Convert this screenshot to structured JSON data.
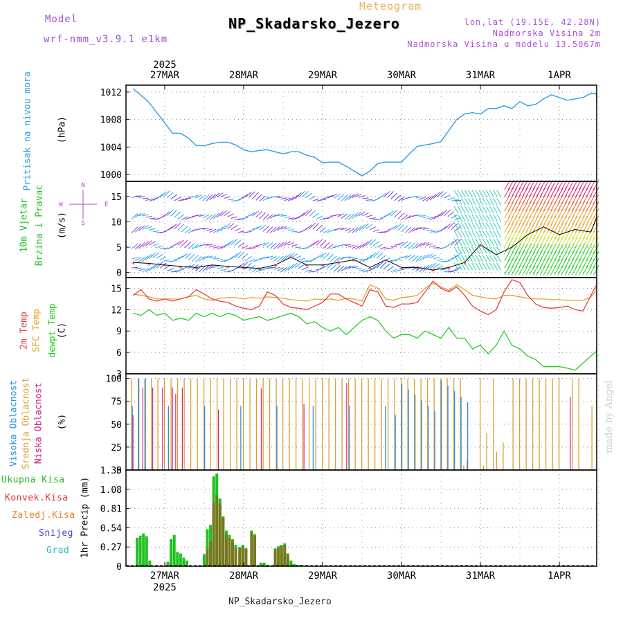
{
  "header": {
    "model_label": "Model",
    "model_name": "wrf-nmm_v3.9.1 e1km",
    "meteogram_label": "Meteogram",
    "station_title": "NP_Skadarsko_Jezero",
    "lonlat": "lon,lat (19.15E, 42.28N)",
    "altitude": "Nadmorska Visina 2m",
    "model_altitude": "Nadmorska Visina u modelu 13.5067m"
  },
  "footer": {
    "station": "NP_Skadarsko_Jezero"
  },
  "watermark": "made by Angel",
  "time_axis": {
    "year": "2025",
    "days": [
      "27MAR",
      "28MAR",
      "29MAR",
      "30MAR",
      "31MAR",
      "1APR"
    ]
  },
  "panels": {
    "pressure": {
      "label": "Pritisak na nivou mora",
      "unit": "(hPa)",
      "color": "#2a9fe0"
    },
    "wind": {
      "label_line1": "10m Vjetar",
      "label_line2": "Brzina i Pravac",
      "unit": "(m/s)",
      "compass": "N ↑, W ←, E →, S ↓",
      "color": "#20c020"
    },
    "temp": {
      "label_2m": "2m Temp",
      "label_sfc": "SFC Temp",
      "label_dew": "dewpt Temp",
      "unit": "(C)",
      "colors": {
        "t2m": "#e84040",
        "sfc": "#e8a030",
        "dew": "#20d020"
      }
    },
    "cloud": {
      "label_high": "Visoka Oblacnost",
      "label_mid": "Srednja Oblacnost",
      "label_low": "Niska Oblacnost",
      "unit": "(%)",
      "colors": {
        "high": "#2a8fe0",
        "mid": "#d8a030",
        "low": "#d02080"
      }
    },
    "precip": {
      "axis_label": "1hr Precip (mm)",
      "legend": [
        {
          "label": "Ukupna Kisa",
          "color": "#20c020"
        },
        {
          "label": "Konvek.Kisa",
          "color": "#e83030"
        },
        {
          "label": "Zaledj.Kisa",
          "color": "#f08020"
        },
        {
          "label": "Snijeg",
          "color": "#4040e0"
        },
        {
          "label": "Grad",
          "color": "#20c0c0"
        }
      ]
    }
  },
  "chart_data": [
    {
      "type": "line",
      "title": "Pritisak na nivou mora",
      "ylabel": "(hPa)",
      "ylim": [
        999,
        1013
      ],
      "yticks": [
        1000,
        1004,
        1008,
        1012
      ],
      "x_unit": "days from 27MAR 00Z",
      "series": [
        {
          "name": "Pritisak na nivou mora",
          "x": [
            -0.4,
            -0.3,
            -0.2,
            -0.1,
            0.0,
            0.1,
            0.2,
            0.3,
            0.4,
            0.5,
            0.6,
            0.7,
            0.8,
            0.9,
            1.0,
            1.1,
            1.2,
            1.3,
            1.4,
            1.5,
            1.6,
            1.7,
            1.8,
            1.9,
            2.0,
            2.1,
            2.2,
            2.3,
            2.4,
            2.5,
            2.6,
            2.7,
            2.8,
            2.9,
            3.0,
            3.1,
            3.2,
            3.3,
            3.4,
            3.5,
            3.6,
            3.7,
            3.8,
            3.9,
            4.0,
            4.1,
            4.2,
            4.3,
            4.4,
            4.5,
            4.6,
            4.7,
            4.8,
            4.9,
            5.0,
            5.1,
            5.2,
            5.3,
            5.4,
            5.5,
            5.6
          ],
          "values": [
            1012.5,
            1011.5,
            1010.5,
            1009.0,
            1007.5,
            1006.0,
            1006.0,
            1005.3,
            1004.2,
            1004.2,
            1004.5,
            1004.7,
            1004.7,
            1004.3,
            1003.6,
            1003.3,
            1003.5,
            1003.6,
            1003.3,
            1003.0,
            1003.3,
            1003.3,
            1002.8,
            1002.5,
            1001.7,
            1001.8,
            1001.8,
            1001.2,
            1000.5,
            999.8,
            1000.5,
            1001.6,
            1001.8,
            1001.8,
            1001.8,
            1003.0,
            1004.1,
            1004.3,
            1004.5,
            1004.8,
            1006.4,
            1008.0,
            1008.8,
            1009.0,
            1008.8,
            1009.6,
            1009.6,
            1010.0,
            1009.6,
            1010.6,
            1010.0,
            1010.2,
            1011.0,
            1011.6,
            1011.2,
            1010.8,
            1011.0,
            1011.2,
            1011.8,
            1011.7,
            1010.6
          ]
        }
      ]
    },
    {
      "type": "line",
      "title": "10m Vjetar Brzina i Pravac",
      "ylabel": "(m/s)",
      "ylim": [
        -1,
        18
      ],
      "yticks": [
        0,
        5,
        10,
        15
      ],
      "x_unit": "days from 27MAR 00Z",
      "series": [
        {
          "name": "wind speed",
          "x": [
            -0.4,
            -0.2,
            0.0,
            0.2,
            0.4,
            0.6,
            0.8,
            1.0,
            1.2,
            1.4,
            1.6,
            1.8,
            2.0,
            2.2,
            2.4,
            2.6,
            2.8,
            3.0,
            3.2,
            3.4,
            3.6,
            3.8,
            4.0,
            4.2,
            4.4,
            4.6,
            4.8,
            5.0,
            5.2,
            5.4,
            5.6
          ],
          "values": [
            2.0,
            1.8,
            1.5,
            1.2,
            1.0,
            1.5,
            1.2,
            1.0,
            0.8,
            1.5,
            3.0,
            1.5,
            1.5,
            2.0,
            2.5,
            1.0,
            2.5,
            1.0,
            1.0,
            0.5,
            1.0,
            2.0,
            5.5,
            3.5,
            5.0,
            7.5,
            9.0,
            7.5,
            8.5,
            8.0,
            11.0
          ]
        }
      ]
    },
    {
      "type": "line",
      "title": "2m Temp / SFC Temp / dewpt Temp",
      "ylabel": "(C)",
      "ylim": [
        3,
        16.5
      ],
      "yticks": [
        3,
        6,
        9,
        12,
        15
      ],
      "x_unit": "days from 27MAR 00Z",
      "series": [
        {
          "name": "2m Temp",
          "x": [
            -0.4,
            -0.3,
            -0.2,
            -0.1,
            0.0,
            0.1,
            0.2,
            0.3,
            0.4,
            0.5,
            0.6,
            0.7,
            0.8,
            0.9,
            1.0,
            1.1,
            1.2,
            1.3,
            1.4,
            1.5,
            1.6,
            1.7,
            1.8,
            1.9,
            2.0,
            2.1,
            2.2,
            2.3,
            2.4,
            2.5,
            2.6,
            2.7,
            2.8,
            2.9,
            3.0,
            3.1,
            3.2,
            3.3,
            3.4,
            3.5,
            3.6,
            3.7,
            3.8,
            3.9,
            4.0,
            4.1,
            4.2,
            4.3,
            4.4,
            4.5,
            4.6,
            4.7,
            4.8,
            4.9,
            5.0,
            5.1,
            5.2,
            5.3,
            5.4,
            5.5,
            5.6
          ],
          "values": [
            14.0,
            14.8,
            13.5,
            13.2,
            13.5,
            13.2,
            13.5,
            13.8,
            14.8,
            14.2,
            13.5,
            13.2,
            13.0,
            12.5,
            12.2,
            12.0,
            12.5,
            14.5,
            14.0,
            12.8,
            12.3,
            12.2,
            12.0,
            12.5,
            13.0,
            14.2,
            14.2,
            13.5,
            13.0,
            12.5,
            14.8,
            14.5,
            12.5,
            12.3,
            12.8,
            12.8,
            13.0,
            14.5,
            16.0,
            15.0,
            14.5,
            15.2,
            14.0,
            12.5,
            11.8,
            11.3,
            12.0,
            14.5,
            16.2,
            15.8,
            14.0,
            12.8,
            12.3,
            12.2,
            12.3,
            12.5,
            12.0,
            11.8,
            14.0,
            15.5,
            16.5
          ]
        },
        {
          "name": "SFC Temp",
          "x": [
            -0.4,
            -0.3,
            -0.2,
            -0.1,
            0.0,
            0.1,
            0.2,
            0.3,
            0.4,
            0.5,
            0.6,
            0.7,
            0.8,
            0.9,
            1.0,
            1.1,
            1.2,
            1.3,
            1.4,
            1.5,
            1.6,
            1.7,
            1.8,
            1.9,
            2.0,
            2.1,
            2.2,
            2.3,
            2.4,
            2.5,
            2.6,
            2.7,
            2.8,
            2.9,
            3.0,
            3.1,
            3.2,
            3.3,
            3.4,
            3.5,
            3.6,
            3.7,
            3.8,
            3.9,
            4.0,
            4.1,
            4.2,
            4.3,
            4.4,
            4.5,
            4.6,
            4.7,
            4.8,
            4.9,
            5.0,
            5.1,
            5.2,
            5.3,
            5.4,
            5.5,
            5.6
          ],
          "values": [
            14.2,
            14.0,
            13.8,
            13.5,
            13.5,
            13.5,
            13.5,
            13.8,
            14.0,
            13.5,
            13.3,
            13.6,
            13.7,
            13.7,
            13.5,
            13.7,
            13.6,
            13.8,
            13.7,
            13.6,
            13.4,
            13.3,
            13.2,
            13.5,
            13.4,
            13.5,
            13.3,
            13.6,
            13.5,
            13.2,
            15.5,
            15.0,
            13.5,
            13.3,
            13.7,
            13.8,
            14.0,
            15.0,
            15.7,
            15.2,
            14.7,
            15.5,
            14.8,
            14.0,
            13.8,
            13.6,
            13.5,
            14.0,
            14.0,
            13.8,
            13.6,
            13.5,
            13.5,
            13.4,
            13.4,
            13.3,
            13.3,
            13.3,
            13.8,
            14.8,
            15.2
          ]
        },
        {
          "name": "dewpt Temp",
          "x": [
            -0.4,
            -0.3,
            -0.2,
            -0.1,
            0.0,
            0.1,
            0.2,
            0.3,
            0.4,
            0.5,
            0.6,
            0.7,
            0.8,
            0.9,
            1.0,
            1.1,
            1.2,
            1.3,
            1.4,
            1.5,
            1.6,
            1.7,
            1.8,
            1.9,
            2.0,
            2.1,
            2.2,
            2.3,
            2.4,
            2.5,
            2.6,
            2.7,
            2.8,
            2.9,
            3.0,
            3.1,
            3.2,
            3.3,
            3.4,
            3.5,
            3.6,
            3.7,
            3.8,
            3.9,
            4.0,
            4.1,
            4.2,
            4.3,
            4.4,
            4.5,
            4.6,
            4.7,
            4.8,
            4.9,
            5.0,
            5.1,
            5.2,
            5.3,
            5.4,
            5.5,
            5.6
          ],
          "values": [
            11.5,
            11.2,
            12.0,
            11.2,
            11.5,
            10.5,
            10.8,
            10.5,
            11.5,
            11.0,
            11.5,
            11.0,
            11.5,
            11.2,
            10.5,
            10.8,
            11.0,
            10.5,
            10.8,
            11.2,
            11.5,
            11.0,
            10.0,
            10.3,
            9.5,
            9.0,
            9.5,
            8.5,
            9.5,
            10.5,
            11.0,
            10.5,
            9.0,
            8.0,
            8.5,
            8.5,
            8.0,
            9.0,
            8.5,
            8.0,
            9.5,
            8.0,
            8.0,
            6.5,
            7.0,
            5.8,
            7.0,
            9.0,
            7.0,
            6.5,
            5.5,
            5.0,
            4.0,
            4.0,
            4.0,
            3.8,
            3.5,
            4.5,
            5.5,
            6.2,
            6.8
          ]
        }
      ]
    },
    {
      "type": "bar",
      "title": "Visoka / Srednja / Niska Oblacnost",
      "ylabel": "(%)",
      "ylim": [
        0,
        105
      ],
      "yticks": [
        0,
        25,
        50,
        75,
        100
      ],
      "x_unit": "days from 27MAR 00Z, hourly",
      "series": [
        {
          "name": "Srednja Oblacnost",
          "pattern": "mostly 100% from -0.4 to 4.9 with low values on 31MAR",
          "peak": 100
        },
        {
          "name": "Visoka Oblacnost",
          "pattern": "sporadic 60-100% spikes, dense on 30MAR",
          "peak": 100
        },
        {
          "name": "Niska Oblacnost",
          "pattern": "sporadic spikes on 27MAR-28MAR and 1APR",
          "peak": 100
        }
      ]
    },
    {
      "type": "bar",
      "title": "1hr Precip",
      "ylabel": "1hr Precip (mm)",
      "ylim": [
        0,
        1.35
      ],
      "yticks": [
        0,
        0.27,
        0.54,
        0.81,
        1.08,
        1.35
      ],
      "x_unit": "days from 27MAR 00Z, hourly",
      "series": [
        {
          "name": "Ukupna Kisa",
          "x": [
            -0.35,
            -0.31,
            -0.27,
            -0.23,
            -0.19,
            0.04,
            0.08,
            0.12,
            0.16,
            0.2,
            0.24,
            0.28,
            0.5,
            0.54,
            0.58,
            0.62,
            0.66,
            0.7,
            0.74,
            0.78,
            0.82,
            0.86,
            0.9,
            0.95,
            0.99,
            1.03,
            1.1,
            1.14,
            1.22,
            1.26,
            1.3,
            1.4,
            1.44,
            1.48,
            1.52,
            1.56,
            1.6,
            1.64,
            1.68,
            1.72,
            1.76,
            1.82,
            1.86
          ],
          "values": [
            0.4,
            0.43,
            0.46,
            0.42,
            0.08,
            0.06,
            0.38,
            0.44,
            0.2,
            0.18,
            0.12,
            0.08,
            0.17,
            0.52,
            0.58,
            1.26,
            1.3,
            0.95,
            0.7,
            0.5,
            0.44,
            0.38,
            0.3,
            0.27,
            0.3,
            0.25,
            0.5,
            0.45,
            0.05,
            0.05,
            0.02,
            0.25,
            0.28,
            0.3,
            0.32,
            0.18,
            0.08,
            0.03,
            0.02,
            0.02,
            0.01,
            0.01,
            0.01
          ]
        },
        {
          "name": "Konvek.Kisa",
          "x": [
            0.54,
            0.58,
            0.62,
            0.66,
            0.7,
            0.74,
            0.78,
            0.82,
            0.86,
            0.9,
            0.95,
            0.99,
            1.03,
            1.1,
            1.14,
            1.4,
            1.44,
            1.48,
            1.52,
            1.56
          ],
          "values": [
            0.25,
            0.35,
            0.9,
            1.0,
            0.88,
            0.68,
            0.45,
            0.4,
            0.35,
            0.25,
            0.25,
            0.28,
            0.25,
            0.48,
            0.42,
            0.23,
            0.25,
            0.28,
            0.3,
            0.15
          ]
        }
      ]
    }
  ]
}
